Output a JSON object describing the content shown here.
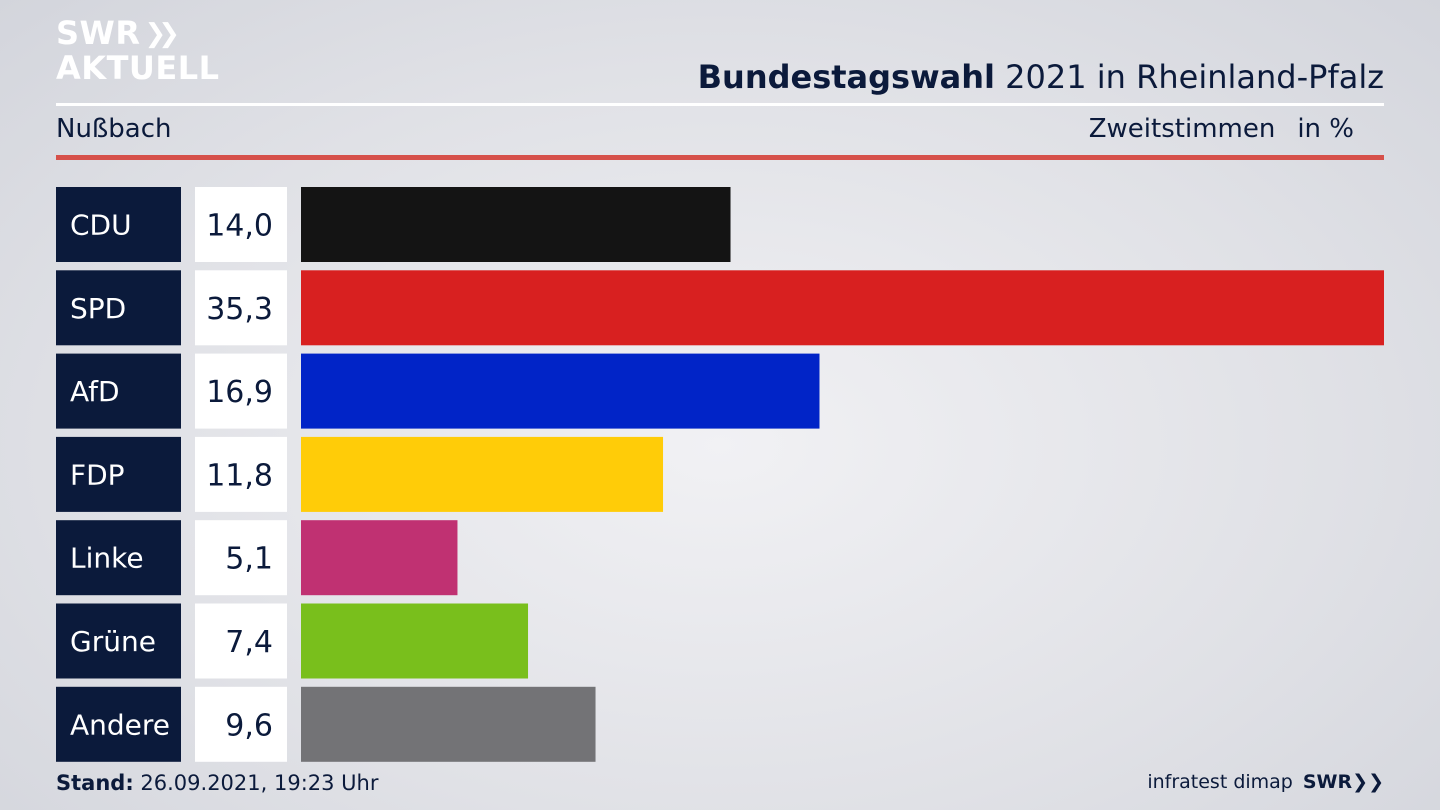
{
  "logo": {
    "line1": "SWR",
    "arrows": "❯❯",
    "line2": "AKTUELL"
  },
  "header": {
    "title_bold": "Bundestagswahl",
    "title_rest": " 2021 in Rheinland-Pfalz",
    "region": "Nußbach",
    "measure": "Zweitstimmen",
    "unit": "in %"
  },
  "chart_data": {
    "type": "bar",
    "orientation": "horizontal",
    "categories": [
      "CDU",
      "SPD",
      "AfD",
      "FDP",
      "Linke",
      "Grüne",
      "Andere"
    ],
    "values": [
      14.0,
      35.3,
      16.9,
      11.8,
      5.1,
      7.4,
      9.6
    ],
    "value_labels": [
      "14,0",
      "35,3",
      "16,9",
      "11,8",
      "5,1",
      "7,4",
      "9,6"
    ],
    "colors": [
      "#141414",
      "#d82020",
      "#0124c7",
      "#ffcc08",
      "#c03172",
      "#79bf1c",
      "#737376"
    ],
    "xlim": [
      0,
      35.3
    ],
    "grid": false
  },
  "footer": {
    "stand_label": "Stand:",
    "stand_value": " 26.09.2021, 19:23 Uhr",
    "source": "infratest dimap",
    "brand": "SWR",
    "brand_arrows": "❯❯"
  }
}
